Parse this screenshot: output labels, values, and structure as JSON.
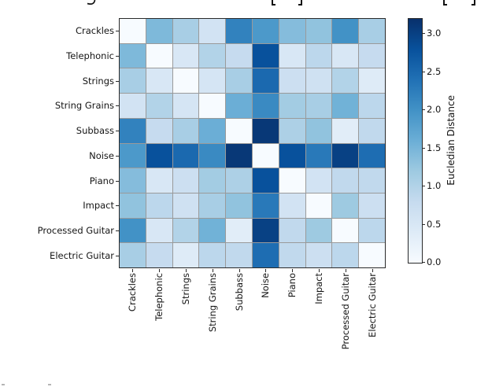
{
  "chart_data": {
    "type": "heatmap",
    "title": "",
    "categories": [
      "Crackles",
      "Telephonic",
      "Strings",
      "String Grains",
      "Subbass",
      "Noise",
      "Piano",
      "Impact",
      "Processed Guitar",
      "Electric Guitar"
    ],
    "matrix": [
      [
        0.0,
        1.45,
        1.1,
        0.6,
        2.2,
        1.9,
        1.4,
        1.3,
        2.0,
        1.1
      ],
      [
        1.45,
        0.0,
        0.5,
        1.0,
        0.8,
        2.8,
        0.5,
        0.9,
        0.5,
        0.8
      ],
      [
        1.1,
        0.5,
        0.0,
        0.55,
        1.1,
        2.5,
        0.7,
        0.65,
        1.0,
        0.4
      ],
      [
        0.6,
        1.0,
        0.55,
        0.0,
        1.6,
        2.1,
        1.15,
        1.1,
        1.55,
        0.9
      ],
      [
        2.2,
        0.8,
        1.1,
        1.6,
        0.0,
        3.1,
        1.05,
        1.3,
        0.35,
        0.85
      ],
      [
        1.9,
        2.8,
        2.5,
        2.1,
        3.1,
        0.0,
        2.8,
        2.3,
        3.0,
        2.45
      ],
      [
        1.4,
        0.5,
        0.7,
        1.15,
        1.05,
        2.8,
        0.0,
        0.6,
        0.85,
        0.85
      ],
      [
        1.3,
        0.9,
        0.65,
        1.1,
        1.3,
        2.3,
        0.6,
        0.0,
        1.2,
        0.7
      ],
      [
        2.0,
        0.5,
        1.0,
        1.55,
        0.35,
        3.0,
        0.85,
        1.2,
        0.0,
        0.9
      ],
      [
        1.1,
        0.8,
        0.4,
        0.9,
        0.85,
        2.45,
        0.85,
        0.7,
        0.9,
        0.0
      ]
    ],
    "grid": {
      "lines": true,
      "line_color": "#9a9a9a"
    },
    "colorbar": {
      "label": "Eucledian Distance",
      "ticks": [
        0.0,
        0.5,
        1.0,
        1.5,
        2.0,
        2.5,
        3.0
      ],
      "vmin": 0.0,
      "vmax": 3.2,
      "colormap": "Blues",
      "colormap_stops": [
        "#f7fbff",
        "#deebf7",
        "#c6dbef",
        "#9ecae1",
        "#6baed6",
        "#4292c6",
        "#2171b5",
        "#08519c",
        "#08306b"
      ]
    }
  },
  "cropped_caption": {
    "top_edge_glyph_bottoms": [
      "y",
      "[",
      "]",
      "[",
      "]"
    ]
  }
}
